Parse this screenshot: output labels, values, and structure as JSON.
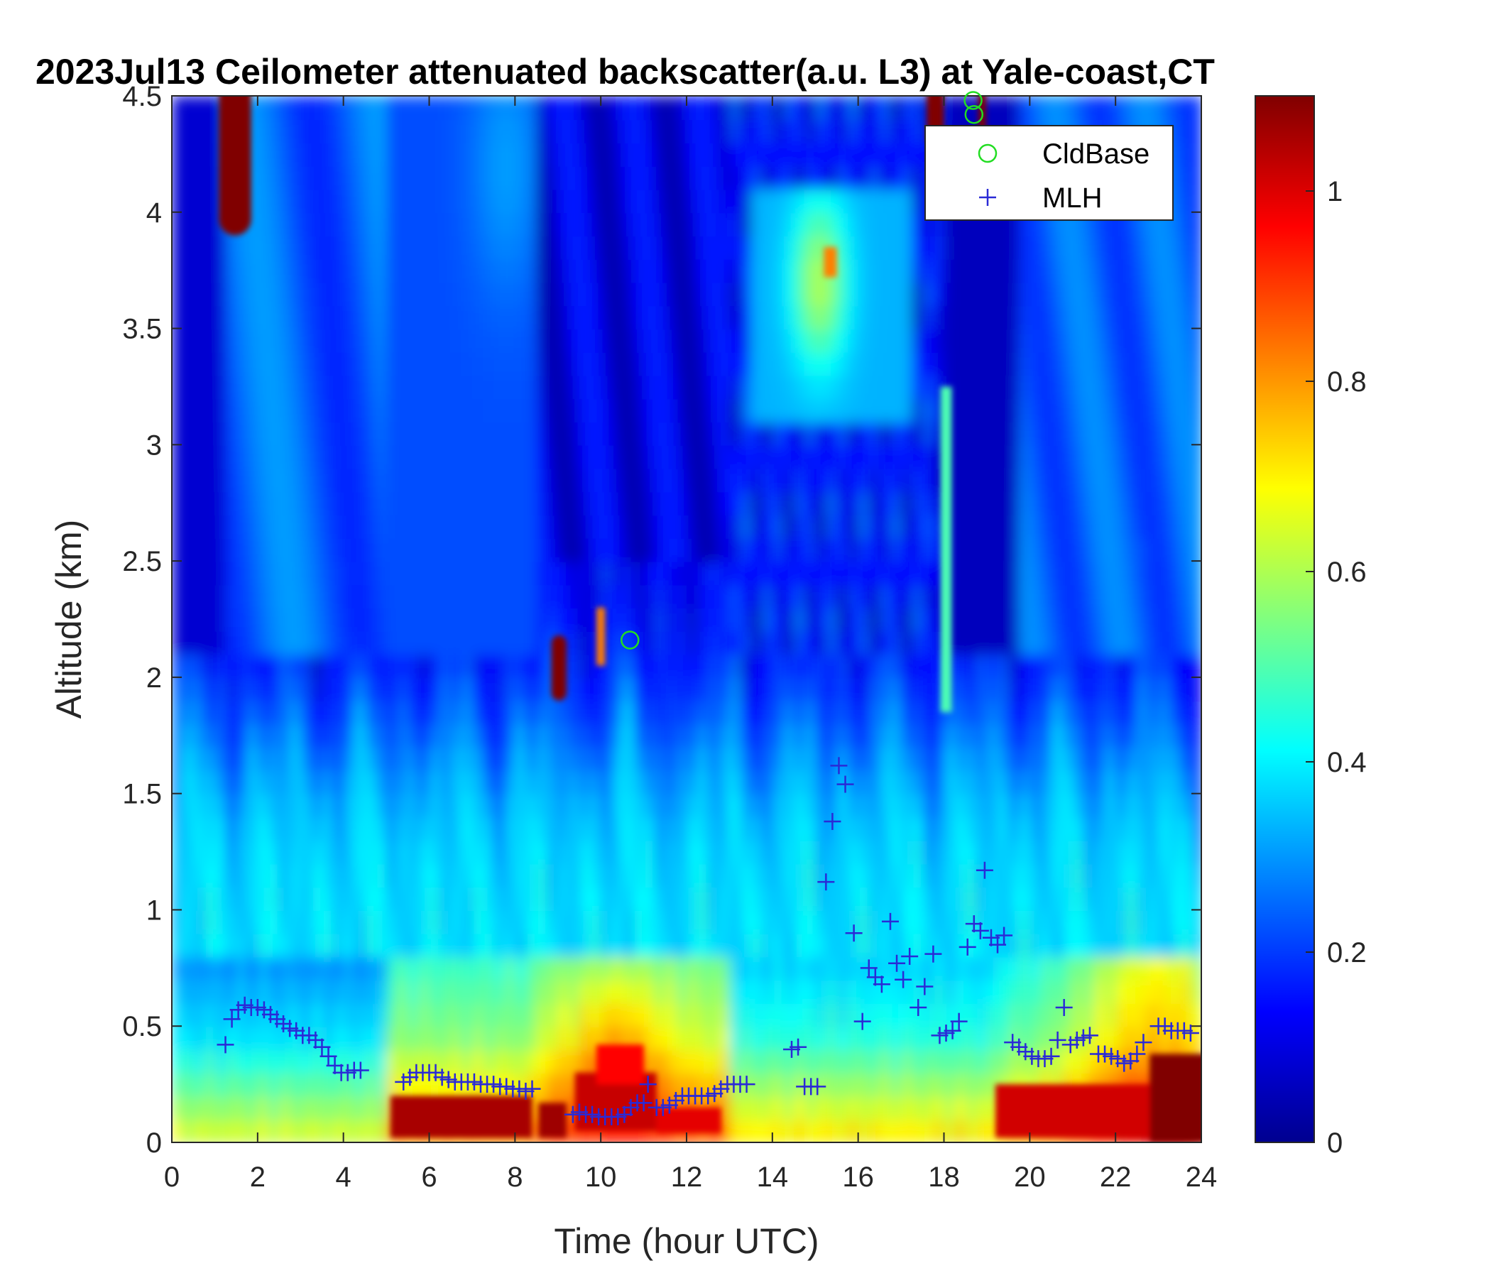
{
  "chart_data": {
    "type": "heatmap",
    "title": "2023Jul13 Ceilometer attenuated backscatter(a.u. L3) at Yale-coast,CT",
    "xlabel": "Time (hour UTC)",
    "ylabel": "Altitude (km)",
    "xlim": [
      0,
      24
    ],
    "ylim": [
      0,
      4.5
    ],
    "xticks": [
      0,
      2,
      4,
      6,
      8,
      10,
      12,
      14,
      16,
      18,
      20,
      22,
      24
    ],
    "yticks": [
      0,
      0.5,
      1,
      1.5,
      2,
      2.5,
      3,
      3.5,
      4,
      4.5
    ],
    "xtick_labels": [
      "0",
      "2",
      "4",
      "6",
      "8",
      "10",
      "12",
      "14",
      "16",
      "18",
      "20",
      "22",
      "24"
    ],
    "ytick_labels": [
      "0",
      "0.5",
      "1",
      "1.5",
      "2",
      "2.5",
      "3",
      "3.5",
      "4",
      "4.5"
    ],
    "colorbar": {
      "colormap": "jet",
      "clim": [
        0,
        1.1
      ],
      "ticks": [
        0,
        0.2,
        0.4,
        0.6,
        0.8,
        1
      ],
      "tick_labels": [
        "0",
        "0.2",
        "0.4",
        "0.6",
        "0.8",
        "1"
      ]
    },
    "legend": {
      "location": "top-right"
    },
    "series": [
      {
        "name": "CldBase",
        "marker": "circle",
        "color": "#22dd22",
        "points": [
          {
            "x": 10.68,
            "y": 2.16
          },
          {
            "x": 18.68,
            "y": 4.48
          },
          {
            "x": 18.7,
            "y": 4.42
          }
        ]
      },
      {
        "name": "MLH",
        "marker": "plus",
        "color": "#2a2ad6",
        "points": [
          {
            "x": 1.25,
            "y": 0.42
          },
          {
            "x": 1.4,
            "y": 0.53
          },
          {
            "x": 1.55,
            "y": 0.57
          },
          {
            "x": 1.7,
            "y": 0.59
          },
          {
            "x": 1.85,
            "y": 0.58
          },
          {
            "x": 2.0,
            "y": 0.58
          },
          {
            "x": 2.15,
            "y": 0.57
          },
          {
            "x": 2.3,
            "y": 0.55
          },
          {
            "x": 2.45,
            "y": 0.53
          },
          {
            "x": 2.6,
            "y": 0.51
          },
          {
            "x": 2.75,
            "y": 0.49
          },
          {
            "x": 2.9,
            "y": 0.48
          },
          {
            "x": 3.05,
            "y": 0.46
          },
          {
            "x": 3.2,
            "y": 0.46
          },
          {
            "x": 3.35,
            "y": 0.44
          },
          {
            "x": 3.5,
            "y": 0.41
          },
          {
            "x": 3.65,
            "y": 0.37
          },
          {
            "x": 3.8,
            "y": 0.33
          },
          {
            "x": 3.95,
            "y": 0.3
          },
          {
            "x": 4.1,
            "y": 0.3
          },
          {
            "x": 4.25,
            "y": 0.31
          },
          {
            "x": 4.4,
            "y": 0.31
          },
          {
            "x": 5.4,
            "y": 0.26
          },
          {
            "x": 5.55,
            "y": 0.28
          },
          {
            "x": 5.7,
            "y": 0.3
          },
          {
            "x": 5.85,
            "y": 0.3
          },
          {
            "x": 6.0,
            "y": 0.3
          },
          {
            "x": 6.15,
            "y": 0.3
          },
          {
            "x": 6.3,
            "y": 0.28
          },
          {
            "x": 6.45,
            "y": 0.27
          },
          {
            "x": 6.6,
            "y": 0.26
          },
          {
            "x": 6.75,
            "y": 0.26
          },
          {
            "x": 6.9,
            "y": 0.26
          },
          {
            "x": 7.05,
            "y": 0.26
          },
          {
            "x": 7.2,
            "y": 0.25
          },
          {
            "x": 7.35,
            "y": 0.25
          },
          {
            "x": 7.5,
            "y": 0.25
          },
          {
            "x": 7.65,
            "y": 0.24
          },
          {
            "x": 7.8,
            "y": 0.24
          },
          {
            "x": 7.95,
            "y": 0.23
          },
          {
            "x": 8.1,
            "y": 0.23
          },
          {
            "x": 8.25,
            "y": 0.22
          },
          {
            "x": 8.4,
            "y": 0.23
          },
          {
            "x": 9.35,
            "y": 0.12
          },
          {
            "x": 9.5,
            "y": 0.13
          },
          {
            "x": 9.65,
            "y": 0.12
          },
          {
            "x": 9.8,
            "y": 0.12
          },
          {
            "x": 9.95,
            "y": 0.11
          },
          {
            "x": 10.1,
            "y": 0.11
          },
          {
            "x": 10.25,
            "y": 0.11
          },
          {
            "x": 10.4,
            "y": 0.11
          },
          {
            "x": 10.55,
            "y": 0.12
          },
          {
            "x": 10.7,
            "y": 0.15
          },
          {
            "x": 10.85,
            "y": 0.17
          },
          {
            "x": 11.0,
            "y": 0.17
          },
          {
            "x": 11.1,
            "y": 0.25
          },
          {
            "x": 11.3,
            "y": 0.15
          },
          {
            "x": 11.45,
            "y": 0.15
          },
          {
            "x": 11.6,
            "y": 0.16
          },
          {
            "x": 11.75,
            "y": 0.18
          },
          {
            "x": 11.9,
            "y": 0.2
          },
          {
            "x": 12.05,
            "y": 0.2
          },
          {
            "x": 12.2,
            "y": 0.2
          },
          {
            "x": 12.35,
            "y": 0.2
          },
          {
            "x": 12.5,
            "y": 0.2
          },
          {
            "x": 12.65,
            "y": 0.21
          },
          {
            "x": 12.8,
            "y": 0.23
          },
          {
            "x": 12.95,
            "y": 0.25
          },
          {
            "x": 13.1,
            "y": 0.25
          },
          {
            "x": 13.25,
            "y": 0.25
          },
          {
            "x": 13.4,
            "y": 0.25
          },
          {
            "x": 14.45,
            "y": 0.4
          },
          {
            "x": 14.6,
            "y": 0.41
          },
          {
            "x": 14.75,
            "y": 0.24
          },
          {
            "x": 14.9,
            "y": 0.24
          },
          {
            "x": 15.05,
            "y": 0.24
          },
          {
            "x": 15.25,
            "y": 1.12
          },
          {
            "x": 15.4,
            "y": 1.38
          },
          {
            "x": 15.55,
            "y": 1.62
          },
          {
            "x": 15.7,
            "y": 1.54
          },
          {
            "x": 15.9,
            "y": 0.9
          },
          {
            "x": 16.1,
            "y": 0.52
          },
          {
            "x": 16.25,
            "y": 0.75
          },
          {
            "x": 16.4,
            "y": 0.71
          },
          {
            "x": 16.55,
            "y": 0.68
          },
          {
            "x": 16.75,
            "y": 0.95
          },
          {
            "x": 16.9,
            "y": 0.77
          },
          {
            "x": 17.05,
            "y": 0.7
          },
          {
            "x": 17.2,
            "y": 0.8
          },
          {
            "x": 17.4,
            "y": 0.58
          },
          {
            "x": 17.55,
            "y": 0.67
          },
          {
            "x": 17.75,
            "y": 0.81
          },
          {
            "x": 17.9,
            "y": 0.46
          },
          {
            "x": 18.05,
            "y": 0.47
          },
          {
            "x": 18.2,
            "y": 0.48
          },
          {
            "x": 18.35,
            "y": 0.52
          },
          {
            "x": 18.55,
            "y": 0.84
          },
          {
            "x": 18.7,
            "y": 0.94
          },
          {
            "x": 18.85,
            "y": 0.91
          },
          {
            "x": 18.95,
            "y": 1.17
          },
          {
            "x": 19.1,
            "y": 0.88
          },
          {
            "x": 19.25,
            "y": 0.85
          },
          {
            "x": 19.4,
            "y": 0.89
          },
          {
            "x": 19.6,
            "y": 0.43
          },
          {
            "x": 19.75,
            "y": 0.41
          },
          {
            "x": 19.9,
            "y": 0.39
          },
          {
            "x": 20.05,
            "y": 0.37
          },
          {
            "x": 20.2,
            "y": 0.36
          },
          {
            "x": 20.35,
            "y": 0.36
          },
          {
            "x": 20.5,
            "y": 0.37
          },
          {
            "x": 20.65,
            "y": 0.44
          },
          {
            "x": 20.8,
            "y": 0.58
          },
          {
            "x": 20.95,
            "y": 0.42
          },
          {
            "x": 21.1,
            "y": 0.44
          },
          {
            "x": 21.25,
            "y": 0.45
          },
          {
            "x": 21.4,
            "y": 0.46
          },
          {
            "x": 21.6,
            "y": 0.38
          },
          {
            "x": 21.75,
            "y": 0.38
          },
          {
            "x": 21.9,
            "y": 0.37
          },
          {
            "x": 22.05,
            "y": 0.36
          },
          {
            "x": 22.2,
            "y": 0.34
          },
          {
            "x": 22.35,
            "y": 0.35
          },
          {
            "x": 22.5,
            "y": 0.38
          },
          {
            "x": 22.65,
            "y": 0.43
          },
          {
            "x": 23.0,
            "y": 0.5
          },
          {
            "x": 23.15,
            "y": 0.5
          },
          {
            "x": 23.3,
            "y": 0.48
          },
          {
            "x": 23.45,
            "y": 0.48
          },
          {
            "x": 23.6,
            "y": 0.48
          },
          {
            "x": 23.75,
            "y": 0.47
          }
        ]
      }
    ]
  }
}
